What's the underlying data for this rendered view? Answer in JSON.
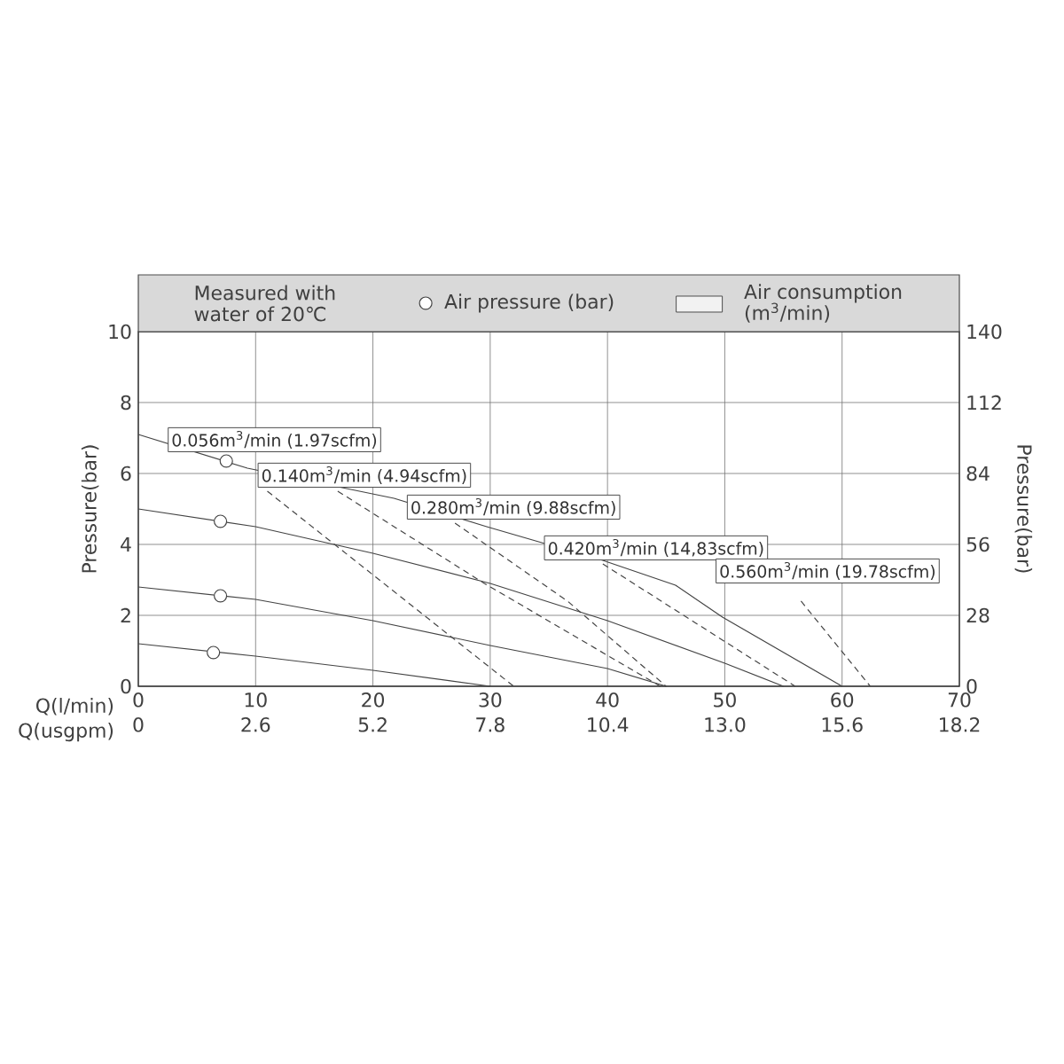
{
  "chart_data": {
    "type": "line",
    "xlabel": "Q(l/min)",
    "ylabel": "Pressure(bar)",
    "y2label": "Pressure(bar)",
    "x2label": "Q(usgpm)",
    "xlim": [
      0,
      70
    ],
    "xticks": [
      0,
      10,
      20,
      30,
      40,
      50,
      60,
      70
    ],
    "ylim": [
      0,
      10
    ],
    "yticks": [
      0,
      2,
      4,
      6,
      8,
      10
    ],
    "y2lim": [
      0,
      140
    ],
    "y2ticks": [
      0,
      28,
      56,
      84,
      112,
      140
    ],
    "x2lim": [
      0,
      18.2
    ],
    "x2ticks": [
      0,
      2.6,
      5.2,
      7.8,
      10.4,
      {
        "value": 13.0,
        "label": "13.0"
      },
      15.6,
      18.2
    ],
    "grid": true,
    "legend": "top",
    "series": [
      {
        "color": "#444444",
        "x": [
          0,
          10,
          20,
          30
        ],
        "values": [
          1.2,
          0.85,
          0.45,
          0
        ]
      },
      {
        "color": "#444444",
        "x": [
          0,
          10,
          20,
          30,
          40,
          45
        ],
        "values": [
          2.8,
          2.45,
          1.85,
          1.15,
          0.5,
          0
        ]
      },
      {
        "color": "#444444",
        "x": [
          0,
          10,
          20,
          30,
          40,
          50,
          55
        ],
        "values": [
          5.0,
          4.5,
          3.75,
          2.9,
          1.85,
          0.65,
          0
        ]
      },
      {
        "color": "#444444",
        "x": [
          0,
          9.3,
          21.8,
          29.7,
          39.6,
          45.8,
          49.8,
          60
        ],
        "values": [
          7.1,
          6.15,
          5.3,
          4.5,
          3.55,
          2.85,
          1.95,
          0
        ]
      },
      {
        "name": "0.056m$^{3}$/min (1.97scfm)",
        "line_style": "dashed",
        "color": "#444444",
        "x": [
          11,
          32
        ],
        "values": [
          5.5,
          0
        ]
      },
      {
        "name": "0.140m$^{3}$/min (4.94scfm)",
        "line_style": "dashed",
        "color": "#444444",
        "x": [
          17,
          29.5,
          44.5
        ],
        "values": [
          5.5,
          2.9,
          0
        ]
      },
      {
        "name": "0.280m$^{3}$/min (9.88scfm)",
        "line_style": "dashed",
        "color": "#444444",
        "x": [
          27,
          36.6,
          45
        ],
        "values": [
          4.6,
          2.4,
          0
        ]
      },
      {
        "name": "0.420m$^{3}$/min (14,83scfm)",
        "line_style": "dashed",
        "color": "#444444",
        "x": [
          39.6,
          56
        ],
        "values": [
          3.45,
          0
        ]
      },
      {
        "name": "0.560m$^{3}$/min (19.78scfm)",
        "line_style": "dashed",
        "color": "#444444",
        "x": [
          56.5,
          62.4
        ],
        "values": [
          2.4,
          0
        ]
      },
      {
        "type": "scatter",
        "name": "Air pressure (bar)",
        "marker": "circle",
        "color": "#444444",
        "x": [
          6.4,
          7,
          7,
          7.5
        ],
        "values": [
          0.95,
          2.55,
          4.65,
          6.35
        ]
      }
    ],
    "annotations": [
      "Measured with water of 20℃",
      "Air consumption (m$^{3}$/min)"
    ]
  }
}
